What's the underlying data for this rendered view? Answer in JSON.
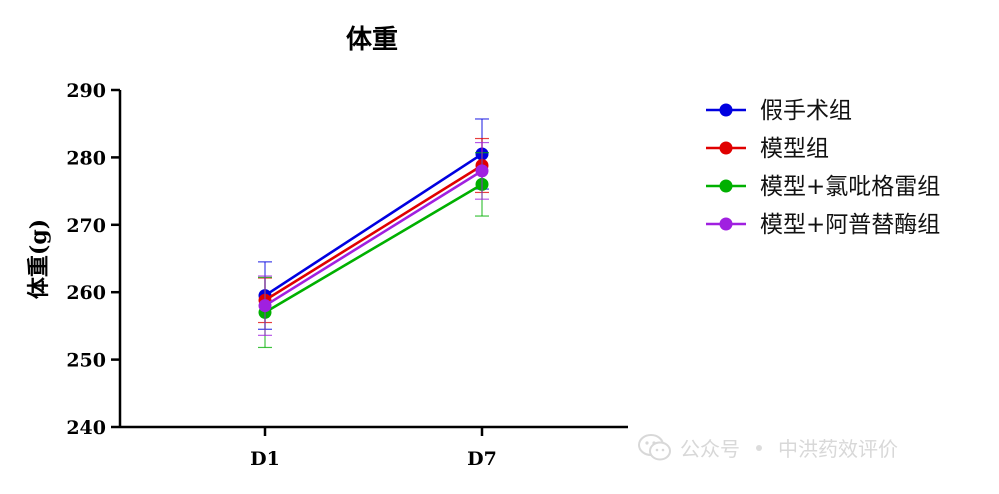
{
  "chart_data": {
    "type": "line",
    "title": "体重",
    "xlabel": "",
    "ylabel": "体重(g)",
    "categories": [
      "D1",
      "D7"
    ],
    "ylim": [
      240,
      290
    ],
    "yticks": [
      240,
      250,
      260,
      270,
      280,
      290
    ],
    "grid": false,
    "legend_position": "right",
    "series": [
      {
        "name": "假手术组",
        "color": "#0000e0",
        "values": [
          259.5,
          280.5
        ],
        "errors": [
          5.0,
          5.2
        ]
      },
      {
        "name": "模型组",
        "color": "#e00000",
        "values": [
          258.8,
          278.8
        ],
        "errors": [
          3.3,
          4.0
        ]
      },
      {
        "name": "模型+氯吡格雷组",
        "color": "#00b000",
        "values": [
          257.0,
          276.0
        ],
        "errors": [
          5.2,
          4.7
        ]
      },
      {
        "name": "模型+阿普替酶组",
        "color": "#a020e0",
        "values": [
          258.0,
          278.0
        ],
        "errors": [
          4.4,
          4.2
        ]
      }
    ]
  },
  "watermark": {
    "icon": "wechat-icon",
    "label": "公众号",
    "account": "中洪药效评价"
  }
}
